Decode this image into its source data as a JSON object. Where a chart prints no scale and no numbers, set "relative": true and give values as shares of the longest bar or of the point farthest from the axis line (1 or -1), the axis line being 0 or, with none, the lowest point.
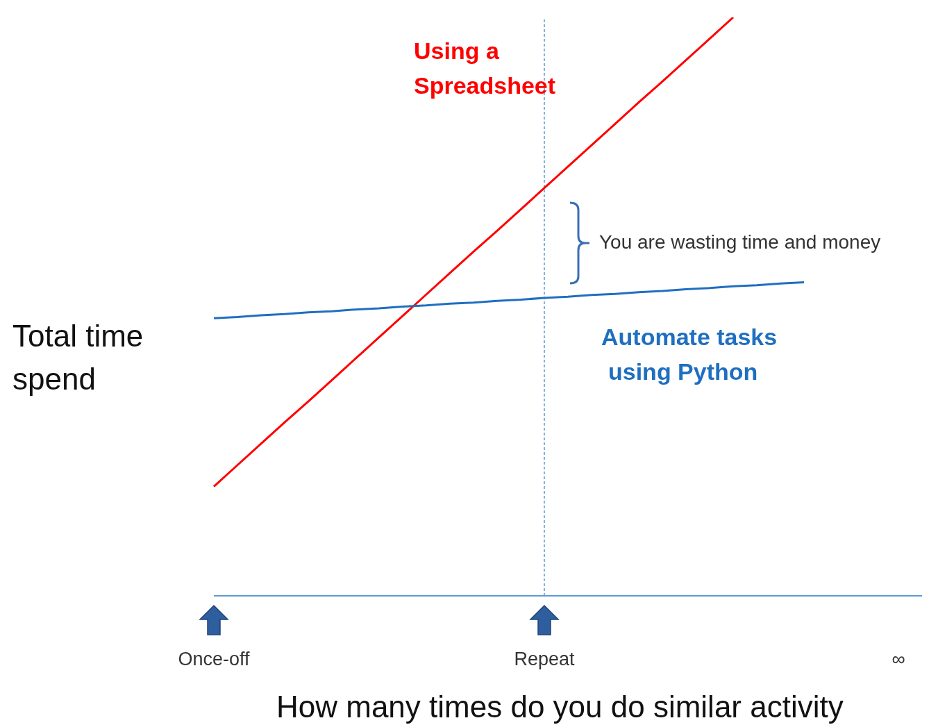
{
  "chart_data": {
    "type": "line",
    "relative": true,
    "xlabel": "How many times do you do similar activity",
    "ylabel": "Total time spend",
    "tick_labels": "x",
    "marker": "none",
    "line_style": "solid",
    "categories": [
      "Once-off",
      null,
      null,
      null,
      null,
      null,
      null,
      null,
      null,
      null,
      null,
      null,
      null,
      null,
      "Repeat",
      null,
      null,
      null,
      null,
      null,
      null,
      null,
      null,
      null,
      null,
      null,
      null,
      null,
      null,
      "∞",
      null
    ],
    "series": [
      {
        "name": "Using a Spreadsheet",
        "color": "#ff0000",
        "values": [
          0.189,
          0.226,
          0.263,
          0.3,
          0.336,
          0.373,
          0.41,
          0.447,
          0.484,
          0.521,
          0.558,
          0.595,
          0.631,
          0.668,
          0.705,
          0.742,
          0.779,
          0.816,
          0.853,
          0.889,
          0.926,
          0.963,
          1,
          null,
          null,
          null,
          null,
          null,
          null,
          null,
          null
        ]
      },
      {
        "name": "Automate tasks using Python",
        "color": "#1f6fc0",
        "values": [
          0.48,
          0.482,
          0.485,
          0.487,
          0.49,
          0.492,
          0.495,
          0.497,
          0.5,
          0.502,
          0.505,
          0.507,
          0.51,
          0.512,
          0.515,
          0.517,
          0.52,
          0.522,
          0.525,
          0.527,
          0.53,
          0.532,
          0.535,
          0.537,
          0.54,
          0.542,
          null,
          null,
          null,
          null,
          null
        ]
      }
    ],
    "ref_lines": [
      {
        "axis": "x",
        "value": "Repeat",
        "color": "#5b9bd5",
        "line_style": "dashed"
      }
    ],
    "annotations": [
      "You are wasting time and money"
    ]
  }
}
